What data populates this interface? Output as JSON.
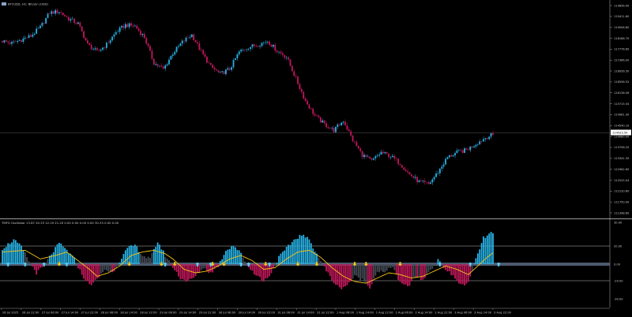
{
  "window": {
    "symbol_title": "BTCUSD, H1: Bitcoin (USD)",
    "indicator_title": "TMFG Oscillator  13.67 20.33 12.19 21.20 0.00 0.00 0.00 0.00 30.33 0.00 0.00"
  },
  "colors": {
    "background": "#000000",
    "bull": "#27b3e6",
    "bear": "#c2185b",
    "wick": "#9a9a9a",
    "signal_line": "#f5c518",
    "separator": "#cfcfcf",
    "osc_gray": "#444a55"
  },
  "chart_data": [
    {
      "type": "candlestick",
      "title": "BTCUSD, H1: Bitcoin (USD)",
      "y_ticks": [
        "119856.90",
        "119411.60",
        "119006.80",
        "118186.70",
        "117776.65",
        "117366.00",
        "116956.50",
        "116556.52",
        "116136.56",
        "115715.54",
        "114981.30",
        "114590.10",
        "114080.00",
        "113758.25",
        "113341.35",
        "112962.65",
        "112525.04",
        "112120.60",
        "111750.90",
        "111398.60"
      ],
      "current_price_label": "114523.50",
      "x_ticks": [
        "26 Jul 2025",
        "26 Jul 22:00",
        "27 Jul 06:00",
        "27 Jul 14:00",
        "27 Jul 22:00",
        "28 Jul 06:00",
        "28 Jul 14:00",
        "28 Jul 22:00",
        "29 Jul 06:00",
        "29 Jul 14:00",
        "29 Jul 22:00",
        "30 Jul 06:00",
        "30 Jul 14:00",
        "30 Jul 22:00",
        "31 Jul 06:00",
        "31 Jul 14:00",
        "31 Jul 22:00",
        "1 Aug 06:00",
        "1 Aug 14:00",
        "1 Aug 22:00",
        "2 Aug 06:00",
        "2 Aug 14:00",
        "2 Aug 22:00",
        "3 Aug 06:00",
        "3 Aug 14:00",
        "3 Aug 22:00"
      ],
      "close_path": [
        [
          0,
          118350
        ],
        [
          5,
          118250
        ],
        [
          10,
          118400
        ],
        [
          15,
          118550
        ],
        [
          20,
          118900
        ],
        [
          25,
          119500
        ],
        [
          30,
          119550
        ],
        [
          35,
          119250
        ],
        [
          40,
          119050
        ],
        [
          45,
          118200
        ],
        [
          50,
          117900
        ],
        [
          55,
          118200
        ],
        [
          60,
          118700
        ],
        [
          65,
          119000
        ],
        [
          70,
          118950
        ],
        [
          75,
          118500
        ],
        [
          80,
          117450
        ],
        [
          85,
          117200
        ],
        [
          90,
          117850
        ],
        [
          95,
          118300
        ],
        [
          100,
          118600
        ],
        [
          105,
          117900
        ],
        [
          110,
          117300
        ],
        [
          115,
          117000
        ],
        [
          120,
          117200
        ],
        [
          125,
          117900
        ],
        [
          130,
          118100
        ],
        [
          135,
          118200
        ],
        [
          140,
          118350
        ],
        [
          145,
          117950
        ],
        [
          150,
          117700
        ],
        [
          155,
          116800
        ],
        [
          160,
          115900
        ],
        [
          165,
          115300
        ],
        [
          170,
          114950
        ],
        [
          175,
          114700
        ],
        [
          180,
          115100
        ],
        [
          185,
          114300
        ],
        [
          190,
          113700
        ],
        [
          195,
          113450
        ],
        [
          200,
          113800
        ],
        [
          205,
          113650
        ],
        [
          210,
          113350
        ],
        [
          215,
          112900
        ],
        [
          220,
          112600
        ],
        [
          225,
          112500
        ],
        [
          230,
          113000
        ],
        [
          235,
          113600
        ],
        [
          240,
          113800
        ],
        [
          245,
          113900
        ],
        [
          250,
          114150
        ],
        [
          255,
          114400
        ],
        [
          258,
          114500
        ]
      ]
    },
    {
      "type": "bar",
      "title": "TMFG Oscillator",
      "y_ticks": [
        "30.00",
        "20.00",
        "0.00",
        "-20.00",
        "-30.00"
      ],
      "x_ticks": [
        "26 Jul 2025",
        "26 Jul 22:00",
        "27 Jul 06:00",
        "27 Jul 14:00",
        "27 Jul 22:00",
        "28 Jul 06:00",
        "28 Jul 14:00",
        "28 Jul 22:00",
        "29 Jul 06:00",
        "29 Jul 14:00",
        "29 Jul 22:00",
        "30 Jul 06:00",
        "30 Jul 14:00",
        "30 Jul 22:00",
        "31 Jul 06:00",
        "31 Jul 14:00",
        "31 Jul 22:00",
        "1 Aug 06:00",
        "1 Aug 14:00",
        "1 Aug 22:00",
        "2 Aug 06:00",
        "2 Aug 14:00",
        "2 Aug 22:00",
        "3 Aug 06:00",
        "3 Aug 14:00",
        "3 Aug 22:00"
      ],
      "osc_path": [
        [
          0,
          18
        ],
        [
          6,
          28
        ],
        [
          10,
          20
        ],
        [
          14,
          4
        ],
        [
          18,
          -10
        ],
        [
          22,
          -2
        ],
        [
          26,
          12
        ],
        [
          30,
          24
        ],
        [
          34,
          16
        ],
        [
          38,
          6
        ],
        [
          42,
          -12
        ],
        [
          46,
          -24
        ],
        [
          50,
          -18
        ],
        [
          54,
          -6
        ],
        [
          58,
          -10
        ],
        [
          62,
          4
        ],
        [
          66,
          18
        ],
        [
          70,
          22
        ],
        [
          74,
          10
        ],
        [
          78,
          6
        ],
        [
          82,
          26
        ],
        [
          86,
          10
        ],
        [
          90,
          -4
        ],
        [
          94,
          -16
        ],
        [
          98,
          -20
        ],
        [
          102,
          -14
        ],
        [
          106,
          -4
        ],
        [
          110,
          -10
        ],
        [
          114,
          -2
        ],
        [
          118,
          16
        ],
        [
          122,
          22
        ],
        [
          126,
          12
        ],
        [
          130,
          -4
        ],
        [
          134,
          -12
        ],
        [
          138,
          -20
        ],
        [
          142,
          -10
        ],
        [
          146,
          8
        ],
        [
          150,
          18
        ],
        [
          154,
          28
        ],
        [
          158,
          34
        ],
        [
          162,
          28
        ],
        [
          166,
          12
        ],
        [
          170,
          -4
        ],
        [
          174,
          -18
        ],
        [
          178,
          -28
        ],
        [
          182,
          -24
        ],
        [
          186,
          -14
        ],
        [
          190,
          -18
        ],
        [
          194,
          -26
        ],
        [
          198,
          -8
        ],
        [
          202,
          -10
        ],
        [
          206,
          -2
        ],
        [
          210,
          -22
        ],
        [
          214,
          -26
        ],
        [
          218,
          -14
        ],
        [
          222,
          -18
        ],
        [
          226,
          -6
        ],
        [
          230,
          4
        ],
        [
          234,
          -6
        ],
        [
          238,
          -14
        ],
        [
          242,
          -24
        ],
        [
          246,
          -22
        ],
        [
          250,
          6
        ],
        [
          254,
          30
        ],
        [
          258,
          36
        ],
        [
          262,
          32
        ],
        [
          266,
          26
        ],
        [
          270,
          30
        ],
        [
          274,
          22
        ]
      ],
      "signal_path": [
        [
          0,
          14
        ],
        [
          12,
          16
        ],
        [
          20,
          6
        ],
        [
          28,
          10
        ],
        [
          34,
          14
        ],
        [
          40,
          4
        ],
        [
          46,
          -6
        ],
        [
          50,
          -14
        ],
        [
          56,
          -10
        ],
        [
          62,
          -2
        ],
        [
          68,
          10
        ],
        [
          74,
          14
        ],
        [
          80,
          16
        ],
        [
          86,
          12
        ],
        [
          90,
          6
        ],
        [
          96,
          -6
        ],
        [
          102,
          -10
        ],
        [
          108,
          -8
        ],
        [
          114,
          -2
        ],
        [
          120,
          6
        ],
        [
          126,
          10
        ],
        [
          132,
          4
        ],
        [
          138,
          -6
        ],
        [
          144,
          -4
        ],
        [
          150,
          6
        ],
        [
          156,
          14
        ],
        [
          162,
          16
        ],
        [
          168,
          8
        ],
        [
          174,
          -4
        ],
        [
          180,
          -14
        ],
        [
          186,
          -20
        ],
        [
          192,
          -22
        ],
        [
          198,
          -16
        ],
        [
          204,
          -10
        ],
        [
          210,
          -12
        ],
        [
          216,
          -16
        ],
        [
          222,
          -14
        ],
        [
          228,
          -8
        ],
        [
          234,
          -2
        ],
        [
          240,
          -6
        ],
        [
          246,
          -12
        ],
        [
          250,
          -4
        ],
        [
          256,
          8
        ],
        [
          262,
          18
        ],
        [
          268,
          22
        ],
        [
          274,
          22
        ]
      ],
      "arrows_up": [
        3,
        12,
        22,
        34,
        86,
        103,
        110,
        126,
        130,
        141,
        231,
        247,
        262
      ],
      "arrows_down": [
        30,
        67,
        84,
        91,
        111,
        117,
        139,
        156,
        166,
        186,
        192,
        210
      ]
    }
  ]
}
